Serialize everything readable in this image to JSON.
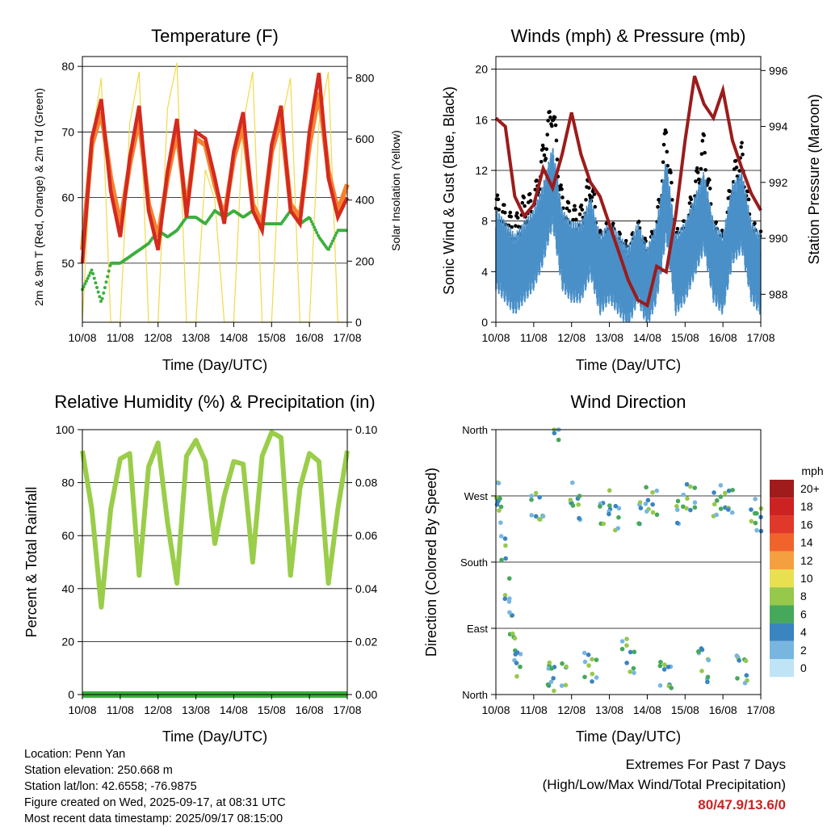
{
  "temperature": {
    "title": "Temperature (F)",
    "xlabel": "Time (Day/UTC)",
    "ylabel_left": "2m & 9m T (Red, Orange) & 2m Td (Green)",
    "ylabel_right": "Solar Insolation (Yellow)"
  },
  "winds": {
    "title": "Winds (mph) & Pressure (mb)",
    "xlabel": "Time (Day/UTC)",
    "ylabel_left": "Sonic Wind & Gust (Blue, Black)",
    "ylabel_right": "Station Pressure (Maroon)"
  },
  "humidity": {
    "title": "Relative Humidity (%) & Precipitation (in)",
    "xlabel": "Time (Day/UTC)",
    "ylabel_left": "Percent & Total Rainfall"
  },
  "wind_direction": {
    "title": "Wind Direction",
    "xlabel": "Time (Day/UTC)",
    "ylabel_left": "Direction (Colored By Speed)",
    "legend_title": "mph"
  },
  "info": {
    "location": "Location: Penn Yan",
    "elevation": "Station elevation: 250.668 m",
    "latlon": "Station lat/lon: 42.6558; -76.9875",
    "created": "Figure created on Wed, 2025-09-17, at 08:31 UTC",
    "recent": "Most recent data timestamp: 2025/09/17 08:15:00"
  },
  "extremes": {
    "line1": "Extremes For Past 7 Days",
    "line2": "(High/Low/Max Wind/Total Precipitation)",
    "values": "80/47.9/13.6/0"
  },
  "colors": {
    "temp_2m": "#d42a1f",
    "temp_9m": "#f5822f",
    "dewpoint": "#3cae3c",
    "solar": "#f2d94a",
    "wind": "#4a90c8",
    "gust": "#000000",
    "pressure": "#9b1c1c",
    "rh": "#9acd4a",
    "precip": "#3cae3c",
    "extremes_text": "#cc2222"
  },
  "chart_data": [
    {
      "type": "line",
      "title": "Temperature (F)",
      "xlabel": "Time (Day/UTC)",
      "ylabel": "2m & 9m T (Red, Orange) & 2m Td (Green)",
      "y2label": "Solar Insolation (Yellow)",
      "x_ticks": [
        "10/08",
        "11/08",
        "12/08",
        "13/08",
        "14/08",
        "15/08",
        "16/08",
        "17/08"
      ],
      "y_ticks": [
        50,
        60,
        70,
        80
      ],
      "y2_ticks": [
        0,
        200,
        400,
        600,
        800
      ],
      "ylim": [
        41,
        81.5
      ],
      "y2lim": [
        0,
        870
      ],
      "x": [
        0,
        0.25,
        0.5,
        0.75,
        1,
        1.25,
        1.5,
        1.75,
        2,
        2.25,
        2.5,
        2.75,
        3,
        3.25,
        3.5,
        3.75,
        4,
        4.25,
        4.5,
        4.75,
        5,
        5.25,
        5.5,
        5.75,
        6,
        6.25,
        6.5,
        6.75,
        7
      ],
      "series": [
        {
          "name": "2m T",
          "values": [
            50,
            69,
            75,
            61,
            54,
            66,
            74,
            58,
            52,
            64,
            72,
            57,
            70,
            69,
            63,
            56,
            67,
            73,
            58,
            55,
            68,
            74,
            58,
            56,
            70,
            79,
            63,
            57,
            60
          ]
        },
        {
          "name": "9m T",
          "values": [
            52,
            68,
            73,
            63,
            56,
            65,
            72,
            59,
            54,
            63,
            70,
            58,
            69,
            68,
            62,
            57,
            66,
            71,
            59,
            56,
            67,
            72,
            59,
            57,
            68,
            76,
            64,
            58,
            62
          ]
        },
        {
          "name": "2m Td",
          "values": [
            46,
            49,
            44,
            50,
            50,
            51,
            52,
            53,
            55,
            54,
            55,
            57,
            57,
            56,
            58,
            57,
            58,
            57,
            58,
            56,
            56,
            56,
            58,
            56,
            57,
            54,
            52,
            55,
            55
          ]
        },
        {
          "name": "Solar",
          "axis": "right",
          "values": [
            0,
            600,
            800,
            0,
            0,
            650,
            820,
            0,
            0,
            700,
            850,
            0,
            0,
            500,
            400,
            0,
            0,
            650,
            820,
            0,
            0,
            650,
            800,
            0,
            0,
            650,
            820,
            0,
            0
          ]
        }
      ]
    },
    {
      "type": "line",
      "title": "Winds (mph) & Pressure (mb)",
      "xlabel": "Time (Day/UTC)",
      "ylabel": "Sonic Wind & Gust (Blue, Black)",
      "y2label": "Station Pressure (Maroon)",
      "x_ticks": [
        "10/08",
        "11/08",
        "12/08",
        "13/08",
        "14/08",
        "15/08",
        "16/08",
        "17/08"
      ],
      "y_ticks": [
        0,
        4,
        8,
        12,
        16,
        20
      ],
      "y2_ticks": [
        988,
        990,
        992,
        994,
        996
      ],
      "ylim": [
        0,
        21
      ],
      "y2lim": [
        987,
        996.5
      ],
      "x": [
        0,
        0.25,
        0.5,
        0.75,
        1,
        1.25,
        1.5,
        1.75,
        2,
        2.25,
        2.5,
        2.75,
        3,
        3.25,
        3.5,
        3.75,
        4,
        4.25,
        4.5,
        4.75,
        5,
        5.25,
        5.5,
        5.75,
        6,
        6.25,
        6.5,
        6.75,
        7
      ],
      "series": [
        {
          "name": "Wind",
          "values": [
            6,
            5,
            4,
            5,
            6,
            8,
            11,
            6,
            5,
            5,
            7,
            4,
            5,
            4,
            3,
            5,
            3,
            5,
            10,
            4,
            5,
            7,
            9,
            5,
            4,
            8,
            9,
            5,
            4
          ]
        },
        {
          "name": "Gust",
          "values": [
            9,
            8,
            7,
            9,
            9,
            13,
            17,
            9,
            8,
            8,
            11,
            6,
            7,
            6,
            5,
            7,
            5,
            7,
            15,
            6,
            7,
            10,
            14,
            7,
            6,
            11,
            13,
            7,
            6
          ]
        },
        {
          "name": "Pressure",
          "axis": "right",
          "values": [
            994.3,
            994.0,
            991.5,
            990.8,
            991.2,
            992.5,
            991.8,
            993.0,
            994.5,
            993.0,
            992.0,
            991.5,
            990.5,
            989.5,
            988.5,
            987.8,
            987.6,
            989.0,
            988.8,
            990.8,
            993.5,
            995.8,
            994.8,
            994.3,
            995.3,
            993.5,
            992.5,
            991.6,
            991
          ]
        }
      ]
    },
    {
      "type": "line",
      "title": "Relative Humidity (%) & Precipitation (in)",
      "xlabel": "Time (Day/UTC)",
      "ylabel": "Percent & Total Rainfall",
      "x_ticks": [
        "10/08",
        "11/08",
        "12/08",
        "13/08",
        "14/08",
        "15/08",
        "16/08",
        "17/08"
      ],
      "y_ticks": [
        0,
        20,
        40,
        60,
        80,
        100
      ],
      "y2_ticks": [
        "0.00",
        "0.02",
        "0.04",
        "0.06",
        "0.08",
        "0.10"
      ],
      "ylim": [
        0,
        100
      ],
      "y2lim": [
        0,
        0.1
      ],
      "x": [
        0,
        0.25,
        0.5,
        0.75,
        1,
        1.25,
        1.5,
        1.75,
        2,
        2.25,
        2.5,
        2.75,
        3,
        3.25,
        3.5,
        3.75,
        4,
        4.25,
        4.5,
        4.75,
        5,
        5.25,
        5.5,
        5.75,
        6,
        6.25,
        6.5,
        6.75,
        7
      ],
      "series": [
        {
          "name": "RH",
          "values": [
            92,
            70,
            33,
            70,
            89,
            91,
            45,
            86,
            95,
            65,
            42,
            90,
            96,
            88,
            57,
            75,
            88,
            87,
            50,
            90,
            99,
            97,
            45,
            78,
            91,
            88,
            42,
            70,
            92
          ]
        },
        {
          "name": "Precipitation",
          "axis": "right",
          "values": [
            0,
            0,
            0,
            0,
            0,
            0,
            0,
            0,
            0,
            0,
            0,
            0,
            0,
            0,
            0,
            0,
            0,
            0,
            0,
            0,
            0,
            0,
            0,
            0,
            0,
            0,
            0,
            0,
            0
          ]
        }
      ]
    },
    {
      "type": "scatter",
      "title": "Wind Direction",
      "xlabel": "Time (Day/UTC)",
      "ylabel": "Direction (Colored By Speed)",
      "x_ticks": [
        "10/08",
        "11/08",
        "12/08",
        "13/08",
        "14/08",
        "15/08",
        "16/08",
        "17/08"
      ],
      "y_ticks": [
        "North",
        "East",
        "South",
        "West",
        "North"
      ],
      "y_values": [
        0,
        90,
        180,
        270,
        360
      ],
      "legend_title": "mph",
      "legend_labels": [
        "20+",
        "18",
        "16",
        "14",
        "12",
        "10",
        "8",
        "6",
        "4",
        "2",
        "0"
      ],
      "legend_colors": [
        "#a01c1c",
        "#cc2222",
        "#e0392b",
        "#f0642c",
        "#f5a040",
        "#e8e050",
        "#96c84a",
        "#46a85a",
        "#3a84c0",
        "#78b6e0",
        "#bfe4f6"
      ],
      "series": [
        {
          "name": "Direction",
          "points": [
            [
              0.05,
              270
            ],
            [
              0.1,
              250
            ],
            [
              0.2,
              200
            ],
            [
              0.3,
              140
            ],
            [
              0.4,
              100
            ],
            [
              0.5,
              60
            ],
            [
              0.6,
              40
            ],
            [
              1.0,
              260
            ],
            [
              1.2,
              250
            ],
            [
              1.4,
              30
            ],
            [
              1.5,
              20
            ],
            [
              1.6,
              360
            ],
            [
              1.8,
              30
            ],
            [
              2.0,
              270
            ],
            [
              2.2,
              255
            ],
            [
              2.4,
              40
            ],
            [
              2.6,
              30
            ],
            [
              2.8,
              250
            ],
            [
              3.0,
              260
            ],
            [
              3.2,
              240
            ],
            [
              3.4,
              60
            ],
            [
              3.6,
              40
            ],
            [
              3.8,
              250
            ],
            [
              4.0,
              265
            ],
            [
              4.2,
              260
            ],
            [
              4.4,
              30
            ],
            [
              4.6,
              20
            ],
            [
              4.8,
              250
            ],
            [
              5.0,
              270
            ],
            [
              5.2,
              265
            ],
            [
              5.4,
              50
            ],
            [
              5.6,
              30
            ],
            [
              5.8,
              260
            ],
            [
              6.0,
              270
            ],
            [
              6.2,
              260
            ],
            [
              6.4,
              40
            ],
            [
              6.6,
              30
            ],
            [
              6.8,
              250
            ],
            [
              6.95,
              240
            ]
          ]
        }
      ]
    }
  ]
}
